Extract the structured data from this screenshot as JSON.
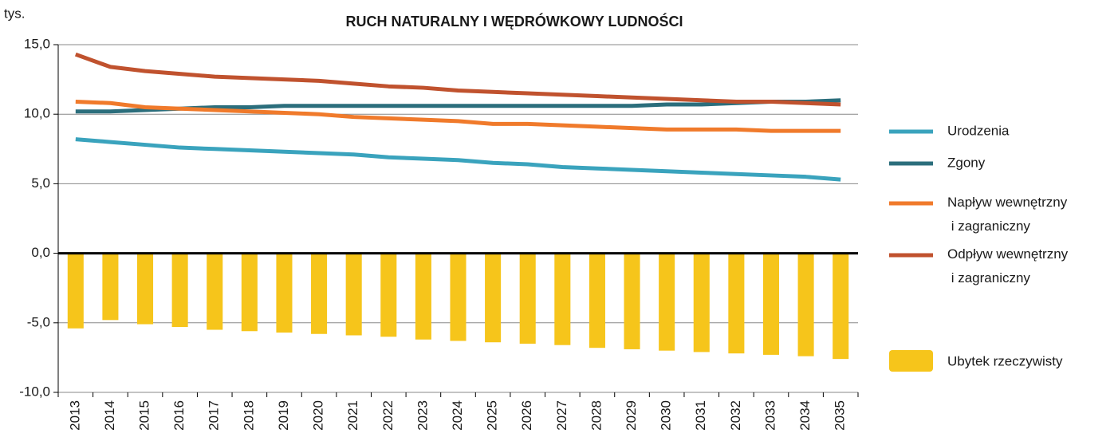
{
  "chart_data": {
    "type": "combo",
    "title": "RUCH NATURALNY I WĘDRÓWKOWY LUDNOŚCI",
    "y_unit": "tys.",
    "categories": [
      "2013",
      "2014",
      "2015",
      "2016",
      "2017",
      "2018",
      "2019",
      "2020",
      "2021",
      "2022",
      "2023",
      "2024",
      "2025",
      "2026",
      "2027",
      "2028",
      "2029",
      "2030",
      "2031",
      "2032",
      "2033",
      "2034",
      "2035"
    ],
    "series": [
      {
        "name": "Urodzenia",
        "color": "#3aa3bd",
        "values": [
          8.2,
          8.0,
          7.8,
          7.6,
          7.5,
          7.4,
          7.3,
          7.2,
          7.1,
          6.9,
          6.8,
          6.7,
          6.5,
          6.4,
          6.2,
          6.1,
          6.0,
          5.9,
          5.8,
          5.7,
          5.6,
          5.5,
          5.3
        ]
      },
      {
        "name": "Zgony",
        "color": "#2b6e7c",
        "values": [
          10.2,
          10.2,
          10.3,
          10.4,
          10.5,
          10.5,
          10.6,
          10.6,
          10.6,
          10.6,
          10.6,
          10.6,
          10.6,
          10.6,
          10.6,
          10.6,
          10.6,
          10.7,
          10.7,
          10.8,
          10.9,
          10.9,
          11.0
        ]
      },
      {
        "name": "Napływ wewnętrzny i zagraniczny",
        "color": "#f07a2b",
        "values": [
          10.9,
          10.8,
          10.5,
          10.4,
          10.3,
          10.2,
          10.1,
          10.0,
          9.8,
          9.7,
          9.6,
          9.5,
          9.3,
          9.3,
          9.2,
          9.1,
          9.0,
          8.9,
          8.9,
          8.9,
          8.8,
          8.8,
          8.8
        ]
      },
      {
        "name": "Odpływ wewnętrzny i zagraniczny",
        "color": "#c0522e",
        "values": [
          14.3,
          13.4,
          13.1,
          12.9,
          12.7,
          12.6,
          12.5,
          12.4,
          12.2,
          12.0,
          11.9,
          11.7,
          11.6,
          11.5,
          11.4,
          11.3,
          11.2,
          11.1,
          11.0,
          10.9,
          10.9,
          10.8,
          10.7
        ]
      }
    ],
    "bars": {
      "name": "Ubytek rzeczywisty",
      "color": "#f6c51b",
      "values": [
        -5.4,
        -4.8,
        -5.1,
        -5.3,
        -5.5,
        -5.6,
        -5.7,
        -5.8,
        -5.9,
        -6.0,
        -6.2,
        -6.3,
        -6.4,
        -6.5,
        -6.6,
        -6.8,
        -6.9,
        -7.0,
        -7.1,
        -7.2,
        -7.3,
        -7.4,
        -7.6
      ]
    },
    "ylim": [
      -10,
      15
    ],
    "yticks": [
      {
        "value": -10,
        "label": "-10,0"
      },
      {
        "value": -5,
        "label": "-5,0"
      },
      {
        "value": 0,
        "label": "0,0"
      },
      {
        "value": 5,
        "label": "5,0"
      },
      {
        "value": 10,
        "label": "10,0"
      },
      {
        "value": 15,
        "label": "15,0"
      }
    ],
    "grid": true
  }
}
